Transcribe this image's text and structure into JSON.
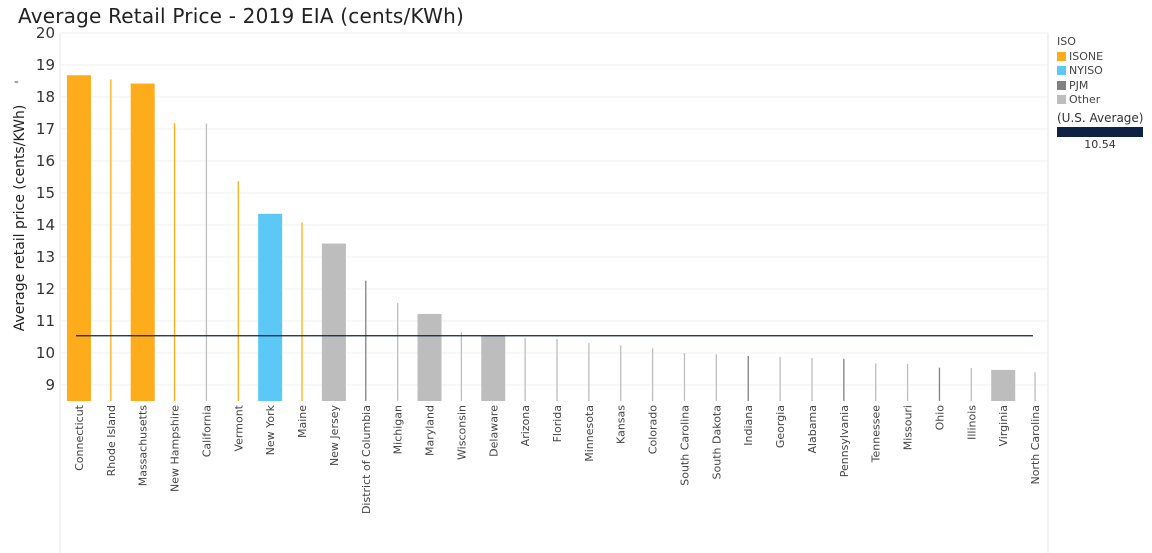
{
  "title": "Average Retail Price - 2019 EIA (cents/KWh)",
  "legend": {
    "title": "ISO",
    "items": [
      {
        "label": "ISONE",
        "color": "#FFAC1C"
      },
      {
        "label": "NYISO",
        "color": "#5BC8F5"
      },
      {
        "label": "PJM",
        "color": "#808080"
      },
      {
        "label": "Other",
        "color": "#BDBDBD"
      }
    ]
  },
  "reference": {
    "label": "(U.S. Average)",
    "value": "10.54",
    "color": "#0E2244"
  },
  "chart_data": {
    "type": "bar",
    "title": "Average Retail Price - 2019 EIA (cents/KWh)",
    "xlabel": "",
    "ylabel": "Average retail price (cents/KWh)",
    "ylim": [
      8.5,
      20.0
    ],
    "yticks": [
      9,
      10,
      11,
      12,
      13,
      14,
      15,
      16,
      17,
      18,
      19,
      20
    ],
    "reference_line": {
      "label": "(U.S. Average)",
      "value": 10.54
    },
    "grid": false,
    "legend_position": "right",
    "categories": [
      "Connecticut",
      "Rhode Island",
      "Massachusetts",
      "New Hampshire",
      "California",
      "Vermont",
      "New York",
      "Maine",
      "New Jersey",
      "District of Columbia",
      "Michigan",
      "Maryland",
      "Wisconsin",
      "Delaware",
      "Arizona",
      "Florida",
      "Minnesota",
      "Kansas",
      "Colorado",
      "South Carolina",
      "South Dakota",
      "Indiana",
      "Georgia",
      "Alabama",
      "Pennsylvania",
      "Tennessee",
      "Missouri",
      "Ohio",
      "Illinois",
      "Virginia",
      "North Carolina"
    ],
    "values": [
      18.68,
      18.55,
      18.42,
      17.18,
      17.17,
      15.37,
      14.35,
      14.08,
      13.42,
      12.26,
      11.56,
      11.22,
      10.65,
      10.56,
      10.47,
      10.44,
      10.31,
      10.24,
      10.15,
      10.0,
      9.96,
      9.91,
      9.88,
      9.84,
      9.82,
      9.67,
      9.66,
      9.54,
      9.53,
      9.47,
      9.4
    ],
    "iso": [
      "ISONE",
      "ISONE",
      "ISONE",
      "ISONE",
      "Other",
      "ISONE",
      "NYISO",
      "ISONE",
      "Other",
      "PJM",
      "Other",
      "Other",
      "Other",
      "Other",
      "Other",
      "Other",
      "Other",
      "Other",
      "Other",
      "Other",
      "Other",
      "PJM",
      "Other",
      "Other",
      "PJM",
      "Other",
      "Other",
      "PJM",
      "Other",
      "Other",
      "Other"
    ],
    "thickness": [
      "wide",
      "thin",
      "wide",
      "thin",
      "thin",
      "thin",
      "wide",
      "thin",
      "wide",
      "thin",
      "thin",
      "wide",
      "thin",
      "wide",
      "thin",
      "thin",
      "thin",
      "thin",
      "thin",
      "thin",
      "thin",
      "thin",
      "thin",
      "thin",
      "thin",
      "thin",
      "thin",
      "thin",
      "thin",
      "wide",
      "thin"
    ]
  }
}
